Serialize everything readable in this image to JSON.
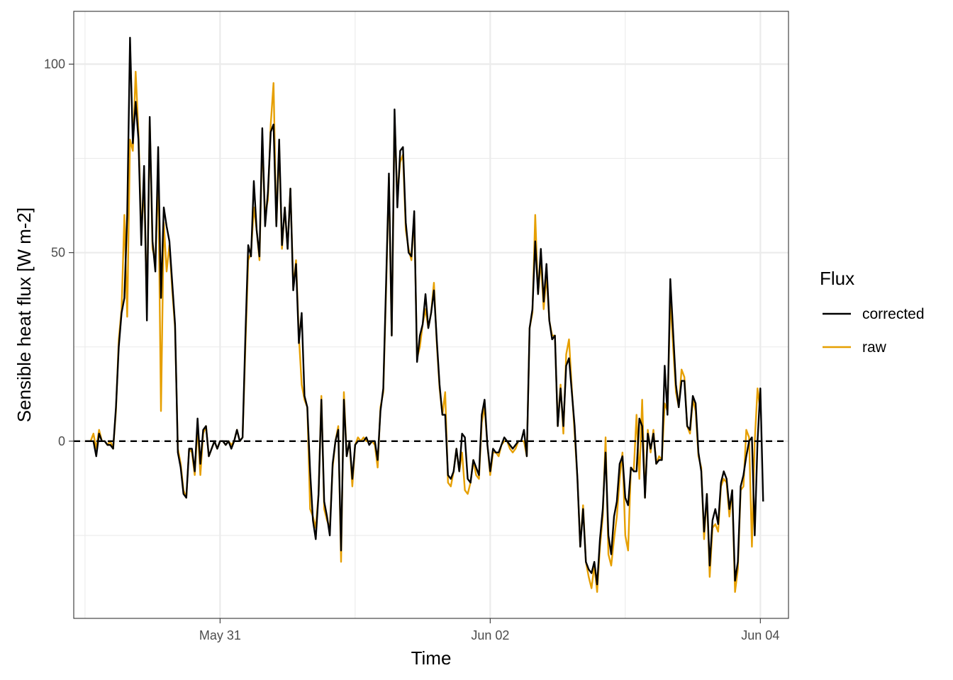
{
  "chart_data": {
    "type": "line",
    "title": "",
    "xlabel": "Time",
    "ylabel": "Sensible heat flux [W m-2]",
    "x_axis": {
      "type": "time",
      "start": "2024-05-30T00:00",
      "step_minutes": 30,
      "ticks": [
        {
          "label": "May 31",
          "date": "2024-05-31T00:00"
        },
        {
          "label": "Jun 02",
          "date": "2024-06-02T00:00"
        },
        {
          "label": "Jun 04",
          "date": "2024-06-04T00:00"
        }
      ],
      "minor_ticks": [
        "2024-05-30T00:00",
        "2024-06-01T00:00",
        "2024-06-03T00:00"
      ],
      "xlim": [
        "2024-05-29T22:00",
        "2024-06-04T05:00"
      ]
    },
    "y_axis": {
      "ylim": [
        -47,
        114
      ],
      "ticks": [
        0,
        50,
        100
      ],
      "minor_ticks": [
        -25,
        25,
        75
      ]
    },
    "reference_line": {
      "y": 0,
      "style": "dashed",
      "color": "#000000"
    },
    "grid": true,
    "legend": {
      "title": "Flux",
      "position": "right"
    },
    "series": [
      {
        "name": "corrected",
        "color": "#000000",
        "values": [
          0,
          0,
          0,
          0,
          -4,
          2,
          0,
          0,
          -1,
          -1,
          -2,
          9,
          25,
          34,
          38,
          60,
          107,
          79,
          90,
          80,
          52,
          73,
          32,
          86,
          53,
          45,
          78,
          38,
          62,
          57,
          53,
          42,
          31,
          -3,
          -7,
          -14,
          -15,
          -2,
          -2,
          -8,
          6,
          -6,
          3,
          4,
          -4,
          -2,
          0,
          -2,
          0,
          0,
          -1,
          0,
          -2,
          0,
          3,
          0,
          1,
          28,
          52,
          49,
          69,
          56,
          49,
          83,
          57,
          66,
          82,
          84,
          57,
          80,
          52,
          62,
          51,
          67,
          40,
          47,
          26,
          34,
          12,
          9,
          -8,
          -21,
          -26,
          -14,
          11,
          -16,
          -20,
          -25,
          -6,
          0,
          3,
          -29,
          11,
          -4,
          0,
          -10,
          -1,
          0,
          0,
          0,
          1,
          -1,
          0,
          0,
          -5,
          8,
          14,
          42,
          71,
          28,
          88,
          62,
          77,
          78,
          58,
          50,
          49,
          61,
          21,
          28,
          31,
          39,
          30,
          34,
          40,
          27,
          15,
          7,
          7,
          -9,
          -10,
          -8,
          -2,
          -8,
          2,
          1,
          -10,
          -11,
          -5,
          -7,
          -9,
          7,
          11,
          -1,
          -8,
          -2,
          -3,
          -3,
          -1,
          1,
          0,
          -1,
          -2,
          -1,
          0,
          0,
          3,
          -4,
          30,
          35,
          53,
          39,
          51,
          37,
          47,
          32,
          27,
          28,
          4,
          14,
          4,
          20,
          22,
          13,
          4,
          -10,
          -28,
          -18,
          -32,
          -34,
          -35,
          -32,
          -38,
          -26,
          -18,
          -3,
          -25,
          -30,
          -20,
          -16,
          -6,
          -4,
          -15,
          -17,
          -7,
          -8,
          -8,
          6,
          4,
          -15,
          2,
          -2,
          2,
          -6,
          -5,
          -5,
          20,
          7,
          43,
          29,
          15,
          9,
          16,
          16,
          4,
          3,
          12,
          10,
          -3,
          -8,
          -24,
          -14,
          -33,
          -21,
          -18,
          -22,
          -11,
          -8,
          -10,
          -18,
          -13,
          -37,
          -32,
          -12,
          -9,
          -4,
          0,
          1,
          -25,
          0,
          14,
          -16
        ]
      },
      {
        "name": "raw",
        "color": "#E69F00",
        "values": [
          0,
          0,
          0,
          2,
          -2,
          3,
          0,
          0,
          -1,
          0,
          -2,
          8,
          27,
          35,
          60,
          33,
          80,
          77,
          98,
          82,
          55,
          68,
          35,
          85,
          51,
          48,
          72,
          8,
          58,
          45,
          52,
          40,
          30,
          -2,
          -6,
          -13,
          -15,
          -2,
          -3,
          -9,
          4,
          -9,
          2,
          4,
          -4,
          -2,
          0,
          -2,
          0,
          0,
          -1,
          0,
          -1,
          0,
          3,
          0,
          1,
          25,
          48,
          50,
          62,
          56,
          48,
          80,
          60,
          64,
          84,
          95,
          57,
          78,
          51,
          62,
          51,
          67,
          41,
          48,
          28,
          15,
          11,
          9,
          -18,
          -20,
          -23,
          -14,
          12,
          -18,
          -21,
          -23,
          -7,
          0,
          4,
          -32,
          13,
          -4,
          0,
          -12,
          -1,
          1,
          0,
          1,
          0,
          0,
          0,
          -1,
          -7,
          9,
          13,
          40,
          70,
          28,
          86,
          65,
          74,
          76,
          56,
          51,
          48,
          60,
          22,
          25,
          31,
          35,
          30,
          34,
          42,
          26,
          14,
          7,
          13,
          -11,
          -12,
          -8,
          -2,
          -8,
          -3,
          -13,
          -14,
          -11,
          -5,
          -9,
          -10,
          5,
          9,
          -1,
          -9,
          -3,
          -3,
          -4,
          -1,
          0,
          0,
          -2,
          -3,
          -2,
          0,
          0,
          0,
          -4,
          30,
          34,
          60,
          39,
          48,
          35,
          44,
          32,
          28,
          28,
          4,
          15,
          2,
          23,
          27,
          14,
          2,
          -10,
          -28,
          -17,
          -32,
          -36,
          -39,
          -33,
          -40,
          -28,
          -20,
          1,
          -30,
          -33,
          -26,
          -20,
          -10,
          -3,
          -25,
          -29,
          -7,
          -8,
          7,
          -10,
          11,
          -15,
          3,
          -3,
          3,
          -6,
          -4,
          -5,
          10,
          8,
          38,
          25,
          13,
          9,
          19,
          17,
          4,
          2,
          11,
          8,
          -4,
          -7,
          -26,
          -14,
          -36,
          -23,
          -22,
          -24,
          -12,
          -10,
          -11,
          -20,
          -13,
          -40,
          -34,
          -13,
          -12,
          3,
          1,
          -28,
          0,
          14,
          8
        ]
      }
    ]
  }
}
